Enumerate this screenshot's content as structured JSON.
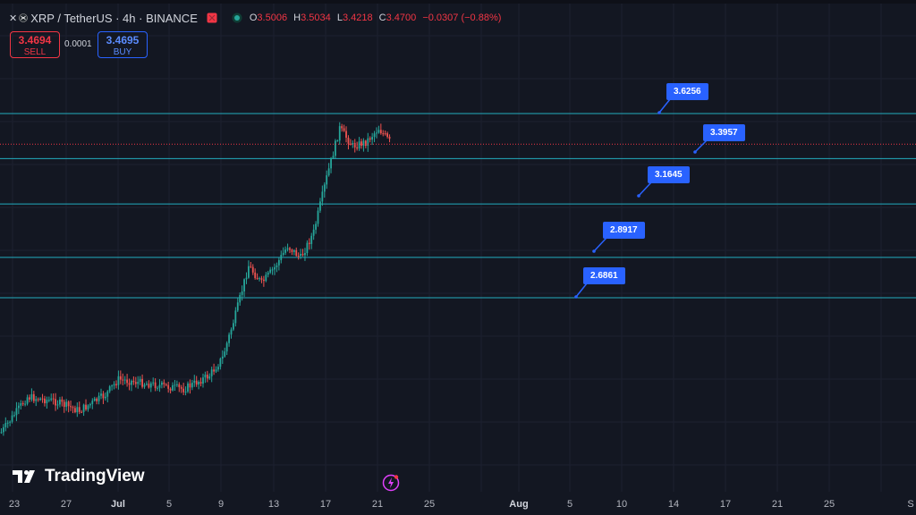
{
  "header": {
    "symbol": "XRP / TetherUS · 4h · BINANCE",
    "ohlc": {
      "o_label": "O",
      "o": "3.5006",
      "h_label": "H",
      "h": "3.5034",
      "l_label": "L",
      "l": "3.4218",
      "c_label": "C",
      "c": "3.4700",
      "change": "−0.0307 (−0.88%)"
    }
  },
  "trade": {
    "sell_price": "3.4694",
    "sell_label": "SELL",
    "spread": "0.0001",
    "buy_price": "3.4695",
    "buy_label": "BUY"
  },
  "levels": [
    "3.6256",
    "3.3957",
    "3.1645",
    "2.8917",
    "2.6861"
  ],
  "x_axis": [
    "23",
    "27",
    "Jul",
    "5",
    "9",
    "13",
    "17",
    "21",
    "25",
    "Aug",
    "5",
    "10",
    "14",
    "17",
    "21",
    "25",
    "S"
  ],
  "logo": "TradingView",
  "colors": {
    "up": "#26a69a",
    "down": "#ef5350",
    "level_line": "#26c6da",
    "callout": "#2962ff",
    "bg": "#131722"
  },
  "chart_data": {
    "type": "candlestick",
    "symbol": "XRP / TetherUS",
    "interval": "4h",
    "x_range": [
      "2025-06-23",
      "2025-08-31"
    ],
    "y_range": [
      2.0,
      3.9
    ],
    "close_path": [
      {
        "x": "2025-06-22",
        "y": 2.0
      },
      {
        "x": "2025-06-24",
        "y": 2.18
      },
      {
        "x": "2025-06-26",
        "y": 2.16
      },
      {
        "x": "2025-06-28",
        "y": 2.11
      },
      {
        "x": "2025-06-30",
        "y": 2.19
      },
      {
        "x": "2025-07-01",
        "y": 2.27
      },
      {
        "x": "2025-07-03",
        "y": 2.25
      },
      {
        "x": "2025-07-06",
        "y": 2.22
      },
      {
        "x": "2025-07-08",
        "y": 2.29
      },
      {
        "x": "2025-07-09",
        "y": 2.38
      },
      {
        "x": "2025-07-10",
        "y": 2.6
      },
      {
        "x": "2025-07-11",
        "y": 2.85
      },
      {
        "x": "2025-07-12",
        "y": 2.76
      },
      {
        "x": "2025-07-13",
        "y": 2.84
      },
      {
        "x": "2025-07-14",
        "y": 2.95
      },
      {
        "x": "2025-07-15",
        "y": 2.89
      },
      {
        "x": "2025-07-16",
        "y": 3.02
      },
      {
        "x": "2025-07-17",
        "y": 3.3
      },
      {
        "x": "2025-07-18",
        "y": 3.55
      },
      {
        "x": "2025-07-19",
        "y": 3.46
      },
      {
        "x": "2025-07-20",
        "y": 3.48
      },
      {
        "x": "2025-07-21",
        "y": 3.55
      },
      {
        "x": "2025-07-22",
        "y": 3.47
      }
    ],
    "horizontal_levels": [
      3.6256,
      3.3957,
      3.1645,
      2.8917,
      2.6861
    ],
    "last_price": 3.4694
  }
}
